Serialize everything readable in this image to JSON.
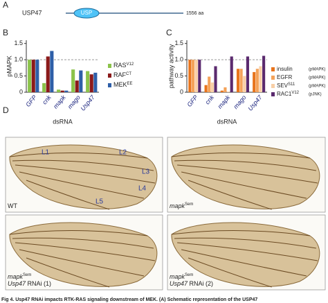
{
  "panels": {
    "a": "A",
    "b": "B",
    "c": "C",
    "d": "D"
  },
  "schematic": {
    "protein": "USP47",
    "domain": "USP",
    "length": "1556 aa"
  },
  "chart_data": [
    {
      "type": "bar",
      "ylabel": "pMAPK",
      "xlabel": "dsRNA",
      "categories": [
        "GFP",
        "cnk",
        "mapk",
        "mago",
        "Usp47"
      ],
      "ylim": [
        0,
        1.6
      ],
      "yticks": [
        0,
        0.5,
        {
          "value": 1,
          "label": "1.0"
        },
        1.5
      ],
      "reference": 1,
      "series": [
        {
          "name": "RAS",
          "superscript": "V12",
          "color": "#8bc34a",
          "values": [
            1,
            0.28,
            0.08,
            0.7,
            0.65
          ]
        },
        {
          "name": "RAF",
          "superscript": "CT",
          "color": "#8b1a1a",
          "values": [
            1,
            1.1,
            0.05,
            0.36,
            0.55
          ]
        },
        {
          "name": "MEK",
          "superscript": "EE",
          "color": "#2e5fa8",
          "values": [
            1,
            1.27,
            0.05,
            0.67,
            0.6
          ]
        }
      ]
    },
    {
      "type": "bar",
      "ylabel": "pathway activity",
      "xlabel": "dsRNA",
      "categories": [
        "GFP",
        "cnk",
        "mapk",
        "mago",
        "Usp47"
      ],
      "ylim": [
        0,
        1.6
      ],
      "yticks": [
        0,
        0.5,
        {
          "value": 1,
          "label": "1.0"
        },
        1.5
      ],
      "reference": 1,
      "series": [
        {
          "name": "insulin",
          "readout": "(pMAPK)",
          "color": "#e8741c",
          "values": [
            1,
            0.22,
            0.05,
            0.72,
            0.62
          ]
        },
        {
          "name": "EGFR",
          "readout": "(pMAPK)",
          "color": "#f4a259",
          "values": [
            1,
            0.48,
            0.15,
            0.72,
            0.72
          ]
        },
        {
          "name": "SEV",
          "superscript": "S11",
          "readout": "(pMAPK)",
          "color": "#f8cfa6",
          "values": [
            1,
            0.3,
            0.02,
            0.5,
            0.8
          ]
        },
        {
          "name": "RAC1",
          "superscript": "V12",
          "readout": "(pJNK)",
          "color": "#5b2a6e",
          "values": [
            1,
            0.8,
            1.1,
            1.1,
            1.12
          ]
        }
      ]
    }
  ],
  "wings": {
    "panels": [
      {
        "lines": [
          [
            {
              "text": "WT"
            }
          ]
        ]
      },
      {
        "lines": [
          [
            {
              "text": "mapk",
              "style": "italic"
            },
            {
              "text": "Sem",
              "style": "sup"
            }
          ]
        ]
      },
      {
        "lines": [
          [
            {
              "text": "mapk",
              "style": "italic"
            },
            {
              "text": "Sem",
              "style": "sup"
            }
          ],
          [
            {
              "text": "Usp47",
              "style": "italic"
            },
            {
              "text": " RNAi (1)"
            }
          ]
        ]
      },
      {
        "lines": [
          [
            {
              "text": "mapk",
              "style": "italic"
            },
            {
              "text": "Sem",
              "style": "sup"
            }
          ],
          [
            {
              "text": "Usp47",
              "style": "italic"
            },
            {
              "text": " RNAi (2)"
            }
          ]
        ]
      }
    ],
    "veins": [
      "L1",
      "L2",
      "L3",
      "L4",
      "L5"
    ]
  },
  "caption": "Fig 4. Usp47 RNAi impacts RTK-RAS signaling downstream of MEK. (A) Schematic representation of the USP47"
}
